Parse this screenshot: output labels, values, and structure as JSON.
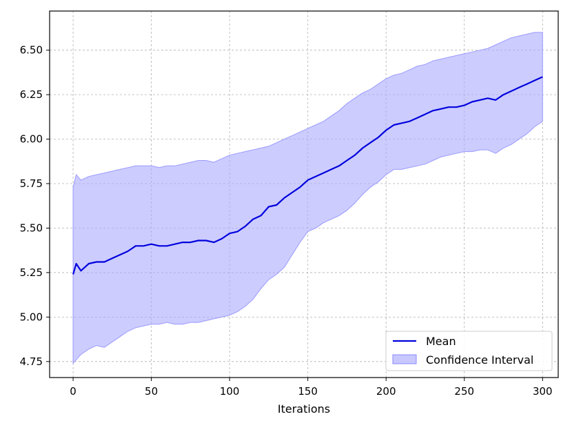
{
  "chart_data": {
    "type": "line",
    "title": "",
    "xlabel": "Iterations",
    "ylabel": "",
    "xlim": [
      -15,
      310
    ],
    "ylim": [
      4.66,
      6.72
    ],
    "grid": true,
    "legend_position": "bottom-right",
    "x_ticks": [
      0,
      50,
      100,
      150,
      200,
      250,
      300
    ],
    "x_tick_labels": [
      "0",
      "50",
      "100",
      "150",
      "200",
      "250",
      "300"
    ],
    "y_ticks": [
      4.75,
      5.0,
      5.25,
      5.5,
      5.75,
      6.0,
      6.25,
      6.5
    ],
    "y_tick_labels": [
      "4.75",
      "5.00",
      "5.25",
      "5.50",
      "5.75",
      "6.00",
      "6.25",
      "6.50"
    ],
    "x": [
      0,
      2,
      5,
      10,
      15,
      20,
      25,
      30,
      35,
      40,
      45,
      50,
      55,
      60,
      65,
      70,
      75,
      80,
      85,
      90,
      95,
      100,
      105,
      110,
      115,
      120,
      125,
      130,
      135,
      140,
      145,
      150,
      155,
      160,
      165,
      170,
      175,
      180,
      185,
      190,
      195,
      200,
      205,
      210,
      215,
      220,
      225,
      230,
      235,
      240,
      245,
      250,
      255,
      260,
      265,
      270,
      275,
      280,
      285,
      290,
      295,
      300
    ],
    "series": [
      {
        "name": "Mean",
        "color": "#0000dd",
        "values": [
          5.24,
          5.3,
          5.26,
          5.3,
          5.31,
          5.31,
          5.33,
          5.35,
          5.37,
          5.4,
          5.4,
          5.41,
          5.4,
          5.4,
          5.41,
          5.42,
          5.42,
          5.43,
          5.43,
          5.42,
          5.44,
          5.47,
          5.48,
          5.51,
          5.55,
          5.57,
          5.62,
          5.63,
          5.67,
          5.7,
          5.73,
          5.77,
          5.79,
          5.81,
          5.83,
          5.85,
          5.88,
          5.91,
          5.95,
          5.98,
          6.01,
          6.05,
          6.08,
          6.09,
          6.1,
          6.12,
          6.14,
          6.16,
          6.17,
          6.18,
          6.18,
          6.19,
          6.21,
          6.22,
          6.23,
          6.22,
          6.25,
          6.27,
          6.29,
          6.31,
          6.33,
          6.35
        ]
      },
      {
        "name": "Confidence Interval",
        "color": "#aaaaff",
        "lower": [
          4.74,
          4.76,
          4.79,
          4.82,
          4.84,
          4.83,
          4.86,
          4.89,
          4.92,
          4.94,
          4.95,
          4.96,
          4.96,
          4.97,
          4.96,
          4.96,
          4.97,
          4.97,
          4.98,
          4.99,
          5.0,
          5.01,
          5.03,
          5.06,
          5.1,
          5.16,
          5.21,
          5.24,
          5.28,
          5.35,
          5.42,
          5.48,
          5.5,
          5.53,
          5.55,
          5.57,
          5.6,
          5.64,
          5.69,
          5.73,
          5.76,
          5.8,
          5.83,
          5.83,
          5.84,
          5.85,
          5.86,
          5.88,
          5.9,
          5.91,
          5.92,
          5.93,
          5.93,
          5.94,
          5.94,
          5.92,
          5.95,
          5.97,
          6.0,
          6.03,
          6.07,
          6.1
        ],
        "upper": [
          5.73,
          5.8,
          5.77,
          5.79,
          5.8,
          5.81,
          5.82,
          5.83,
          5.84,
          5.85,
          5.85,
          5.85,
          5.84,
          5.85,
          5.85,
          5.86,
          5.87,
          5.88,
          5.88,
          5.87,
          5.89,
          5.91,
          5.92,
          5.93,
          5.94,
          5.95,
          5.96,
          5.98,
          6.0,
          6.02,
          6.04,
          6.06,
          6.08,
          6.1,
          6.13,
          6.16,
          6.2,
          6.23,
          6.26,
          6.28,
          6.31,
          6.34,
          6.36,
          6.37,
          6.39,
          6.41,
          6.42,
          6.44,
          6.45,
          6.46,
          6.47,
          6.48,
          6.49,
          6.5,
          6.51,
          6.53,
          6.55,
          6.57,
          6.58,
          6.59,
          6.6,
          6.6
        ]
      }
    ],
    "legend": [
      "Mean",
      "Confidence Interval"
    ]
  }
}
